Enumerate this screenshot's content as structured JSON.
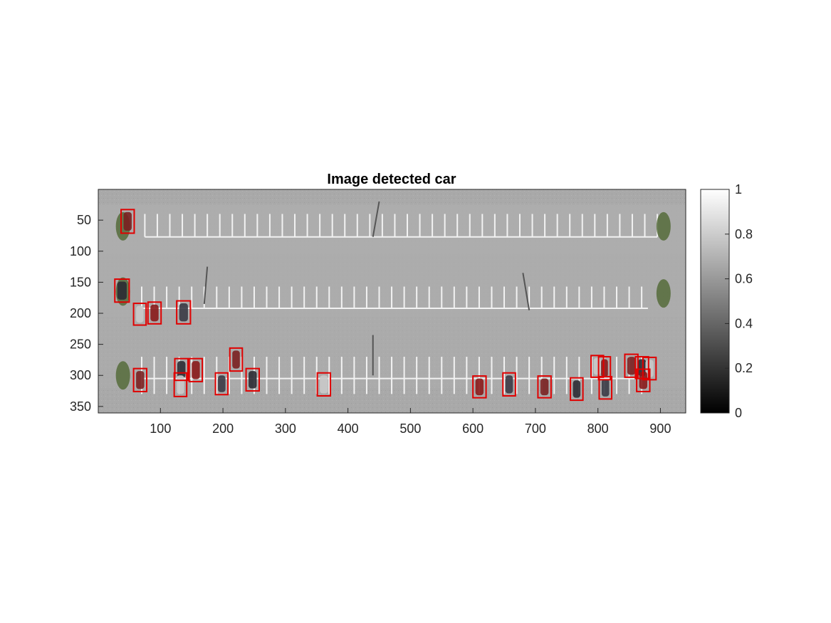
{
  "chart_data": {
    "type": "heatmap",
    "title": "Image detected car",
    "xlabel": "",
    "ylabel": "",
    "xlim": [
      0.5,
      940.5
    ],
    "ylim": [
      0.5,
      360.5
    ],
    "y_reversed": true,
    "x_ticks": [
      100,
      200,
      300,
      400,
      500,
      600,
      700,
      800,
      900
    ],
    "y_ticks": [
      50,
      100,
      150,
      200,
      250,
      300,
      350
    ],
    "colormap": "gray",
    "colorbar": {
      "range": [
        0,
        1
      ],
      "ticks": [
        0,
        0.2,
        0.4,
        0.6,
        0.8,
        1
      ],
      "tick_labels": [
        "0",
        "0.2",
        "0.4",
        "0.6",
        "0.8",
        "1"
      ]
    },
    "box_color": "#e00000",
    "detections": [
      {
        "x": 37,
        "y": 33,
        "w": 21,
        "h": 38
      },
      {
        "x": 27,
        "y": 145,
        "w": 23,
        "h": 37
      },
      {
        "x": 57,
        "y": 184,
        "w": 20,
        "h": 35
      },
      {
        "x": 80,
        "y": 182,
        "w": 21,
        "h": 35
      },
      {
        "x": 126,
        "y": 180,
        "w": 22,
        "h": 37
      },
      {
        "x": 57,
        "y": 289,
        "w": 21,
        "h": 37
      },
      {
        "x": 123,
        "y": 273,
        "w": 21,
        "h": 35
      },
      {
        "x": 122,
        "y": 296,
        "w": 20,
        "h": 38
      },
      {
        "x": 146,
        "y": 273,
        "w": 21,
        "h": 37
      },
      {
        "x": 188,
        "y": 296,
        "w": 20,
        "h": 35
      },
      {
        "x": 211,
        "y": 256,
        "w": 20,
        "h": 37
      },
      {
        "x": 237,
        "y": 289,
        "w": 21,
        "h": 36
      },
      {
        "x": 351,
        "y": 296,
        "w": 21,
        "h": 37
      },
      {
        "x": 600,
        "y": 301,
        "w": 21,
        "h": 35
      },
      {
        "x": 648,
        "y": 296,
        "w": 20,
        "h": 37
      },
      {
        "x": 704,
        "y": 301,
        "w": 21,
        "h": 35
      },
      {
        "x": 756,
        "y": 304,
        "w": 20,
        "h": 36
      },
      {
        "x": 789,
        "y": 268,
        "w": 20,
        "h": 35
      },
      {
        "x": 801,
        "y": 270,
        "w": 19,
        "h": 37
      },
      {
        "x": 802,
        "y": 302,
        "w": 20,
        "h": 36
      },
      {
        "x": 843,
        "y": 266,
        "w": 21,
        "h": 37
      },
      {
        "x": 860,
        "y": 270,
        "w": 21,
        "h": 35
      },
      {
        "x": 872,
        "y": 271,
        "w": 21,
        "h": 36
      },
      {
        "x": 862,
        "y": 290,
        "w": 21,
        "h": 36
      }
    ],
    "grid": false,
    "legend": "none"
  }
}
